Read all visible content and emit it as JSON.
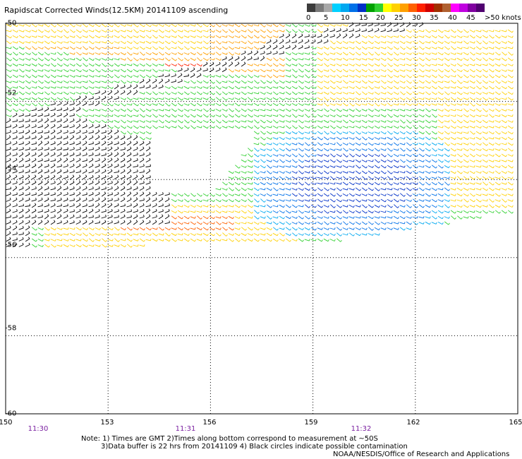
{
  "title": "Rapidscat Corrected Winds(12.5KM) 20141109 ascending",
  "legend": {
    "colors": [
      "#3c3c3c",
      "#7a7a7a",
      "#a8a8a8",
      "#00d0ff",
      "#00a8f0",
      "#0070e8",
      "#0030c8",
      "#00a000",
      "#30d030",
      "#ffff00",
      "#ffd000",
      "#ffa000",
      "#ff6000",
      "#ff2000",
      "#d00000",
      "#a03000",
      "#b06030",
      "#ff00ff",
      "#c000e0",
      "#8000a0",
      "#500070"
    ],
    "labels": [
      "0",
      "5",
      "10",
      "15",
      "20",
      "25",
      "30",
      "35",
      "40",
      "45",
      ">50 knots"
    ]
  },
  "x_ticks": [
    "150",
    "153",
    "156",
    "159",
    "162",
    "165"
  ],
  "y_ticks": [
    "-50",
    "-52",
    "-54",
    "-56",
    "-58",
    "-60"
  ],
  "times": [
    "11:30",
    "11:31",
    "11:32"
  ],
  "notes": {
    "line1": "Note: 1) Times are GMT 2)Times along bottom correspond to measurement at ~50S",
    "line2": "3)Data buffer is 22 hrs from 20141109 4) Black circles indicate possible contamination",
    "line3": "NOAA/NESDIS/Office of Research and Applications"
  },
  "map_data": {
    "lon_range": [
      150,
      165
    ],
    "lat_range": [
      -60,
      -50
    ],
    "swath_lat_range": [
      -56.3,
      -50
    ],
    "wind_units": "knots"
  }
}
